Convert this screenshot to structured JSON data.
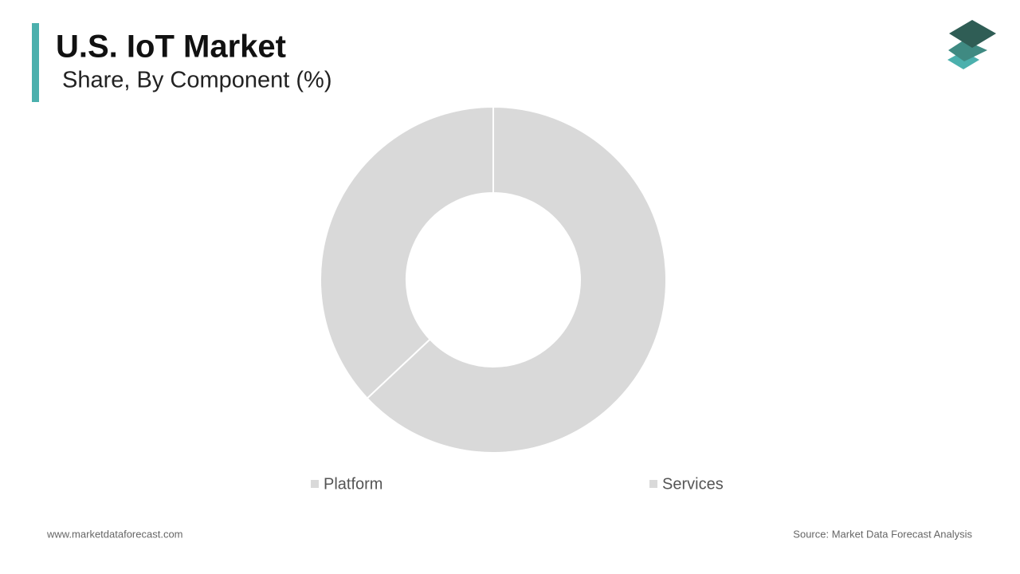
{
  "chart_data": {
    "type": "pie",
    "title": "U.S. IoT Market",
    "subtitle": "Share, By Component (%)",
    "categories": [
      "Platform",
      "Services"
    ],
    "values": [
      63,
      37
    ],
    "colors": [
      "#d9d9d9",
      "#d9d9d9"
    ],
    "donut": true,
    "footer_left": "www.marketdataforecast.com",
    "footer_right": "Source: Market Data Forecast Analysis"
  }
}
